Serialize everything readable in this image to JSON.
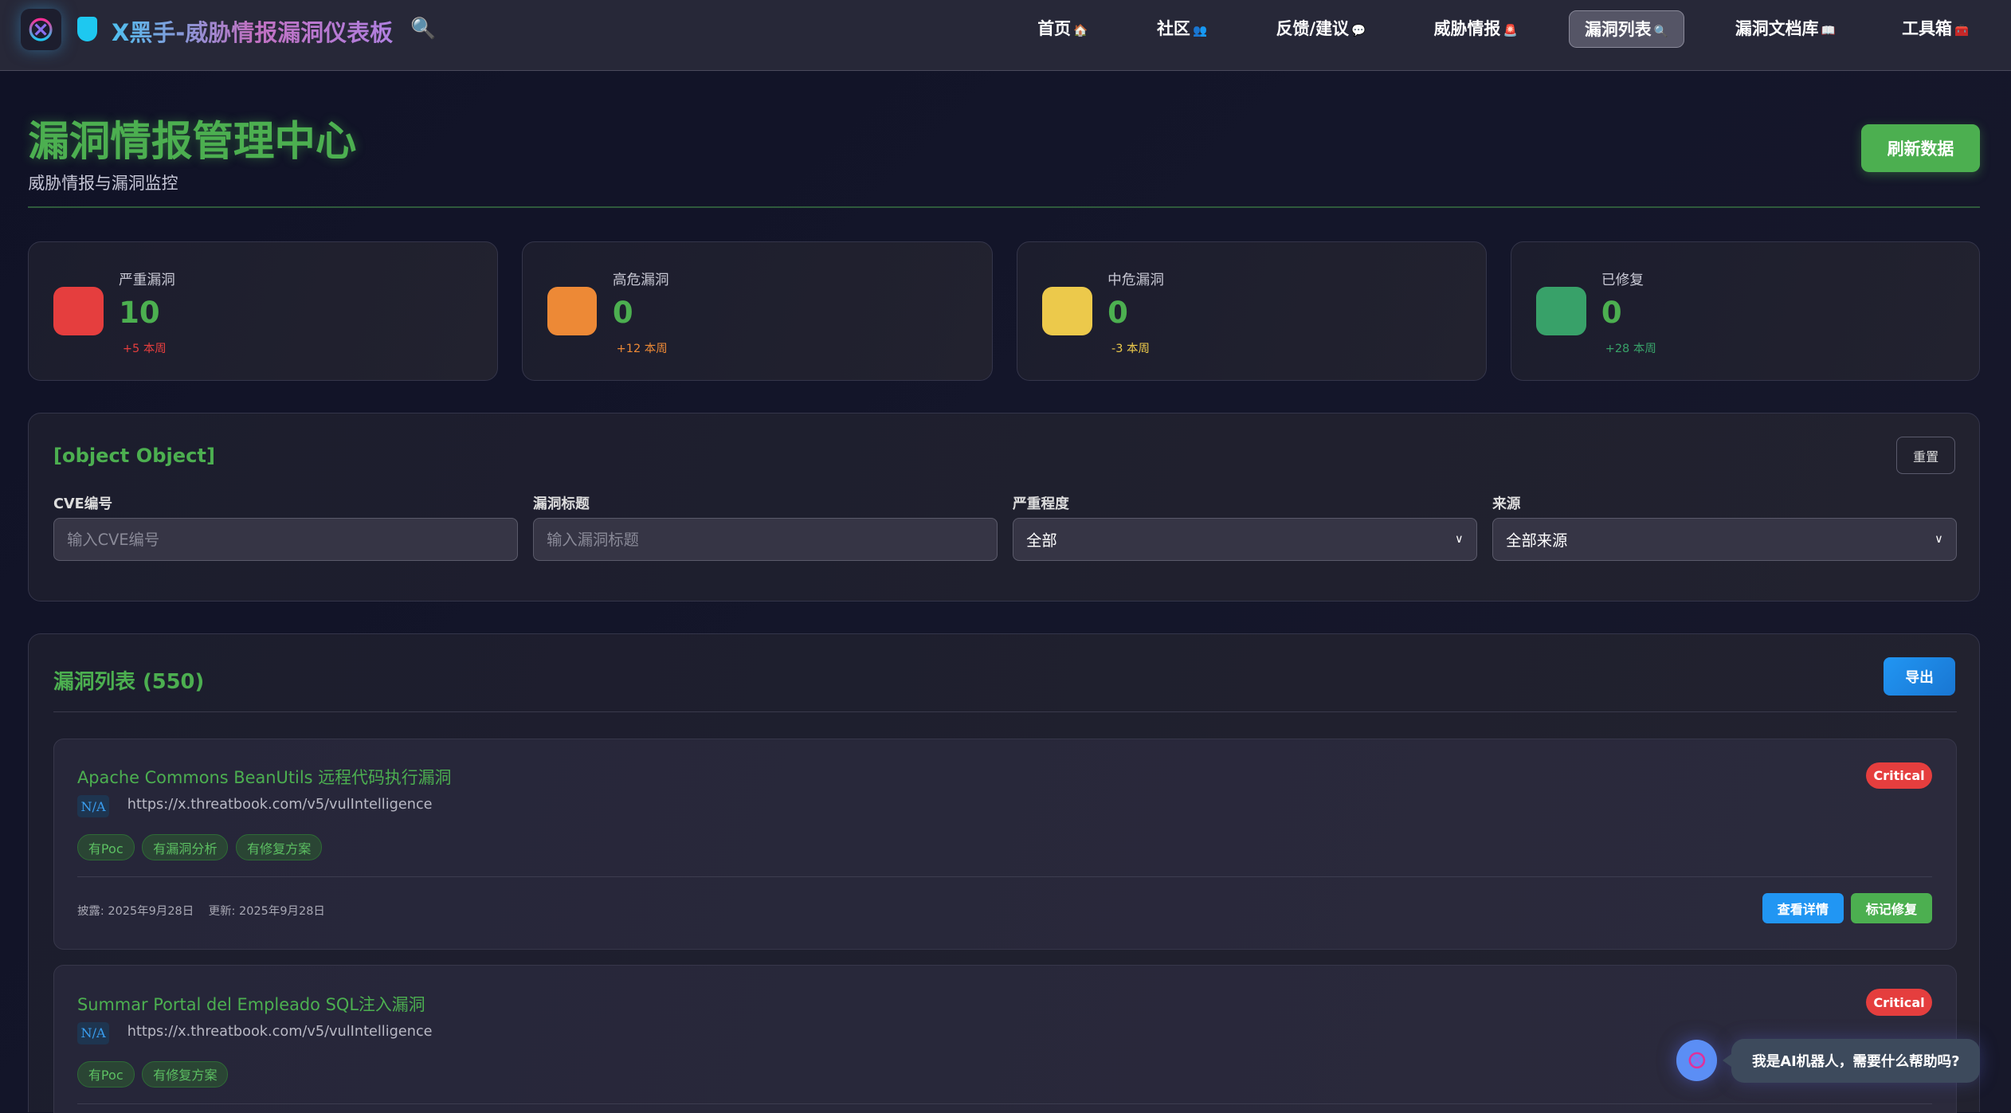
{
  "header": {
    "brand": "X黑手-威胁情报漏洞仪表板",
    "nav": [
      {
        "label": "首页",
        "emoji": "🏠"
      },
      {
        "label": "社区",
        "emoji": "👥"
      },
      {
        "label": "反馈/建议",
        "emoji": "💬"
      },
      {
        "label": "威胁情报",
        "emoji": "🚨"
      },
      {
        "label": "漏洞列表",
        "emoji": "🔍",
        "active": true
      },
      {
        "label": "漏洞文档库",
        "emoji": "📖"
      },
      {
        "label": "工具箱",
        "emoji": "🧰"
      }
    ]
  },
  "page": {
    "title": "漏洞情报管理中心",
    "subtitle": "威胁情报与漏洞监控",
    "refresh_label": "刷新数据"
  },
  "stats": [
    {
      "label": "严重漏洞",
      "value": "10",
      "change": "+5 本周",
      "color": "#e53e3e"
    },
    {
      "label": "高危漏洞",
      "value": "0",
      "change": "+12 本周",
      "color": "#ed8936"
    },
    {
      "label": "中危漏洞",
      "value": "0",
      "change": "-3 本周",
      "color": "#ecc94b"
    },
    {
      "label": "已修复",
      "value": "0",
      "change": "+28 本周",
      "color": "#38a169"
    }
  ],
  "filters": {
    "title": {
      "label": "漏洞标题",
      "placeholder": "输入漏洞标题"
    },
    "reset_label": "重置",
    "cve": {
      "label": "CVE编号",
      "placeholder": "输入CVE编号"
    },
    "severity": {
      "label": "严重程度",
      "value": "全部"
    },
    "source": {
      "label": "来源",
      "value": "全部来源"
    }
  },
  "list": {
    "title": "漏洞列表 (550)",
    "export_label": "导出",
    "items": [
      {
        "title": "Apache Commons BeanUtils 远程代码执行漏洞",
        "cve": "N/A",
        "url": "https://x.threatbook.com/v5/vulIntelligence",
        "tags": [
          "有Poc",
          "有漏洞分析",
          "有修复方案"
        ],
        "severity": "Critical",
        "published": "披露: 2025年9月28日",
        "updated": "更新: 2025年9月28日",
        "view_label": "查看详情",
        "mark_label": "标记修复"
      },
      {
        "title": "Summar Portal del Empleado SQL注入漏洞",
        "cve": "N/A",
        "url": "https://x.threatbook.com/v5/vulIntelligence",
        "tags": [
          "有Poc",
          "有修复方案"
        ],
        "severity": "Critical"
      }
    ]
  },
  "chatbot": {
    "message": "我是AI机器人，需要什么帮助吗?"
  }
}
